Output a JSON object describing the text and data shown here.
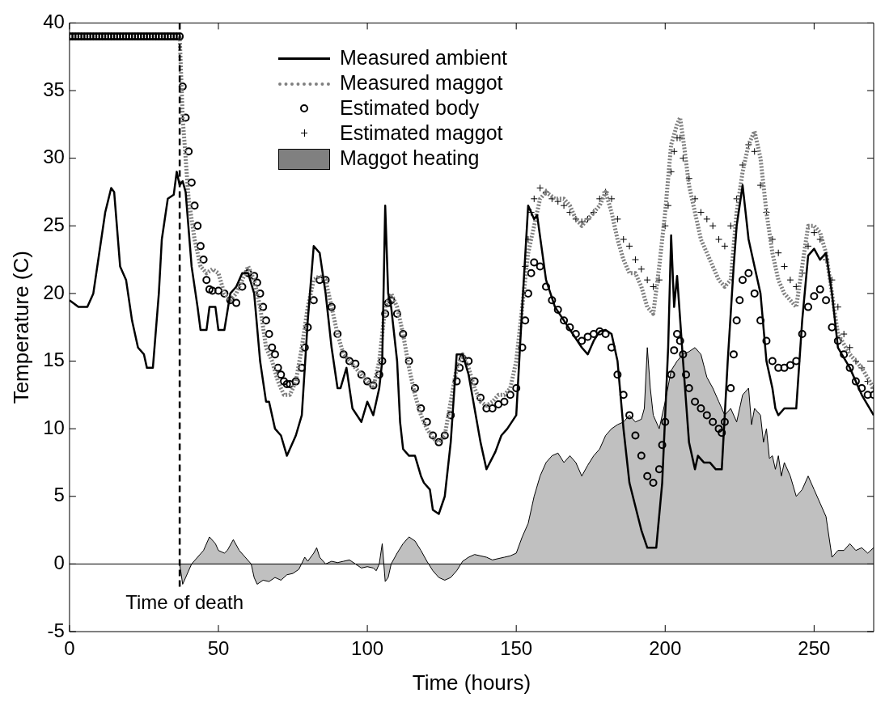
{
  "chart_data": {
    "type": "line",
    "xlabel": "Time (hours)",
    "ylabel": "Temperature (C)",
    "xlim": [
      0,
      270
    ],
    "ylim": [
      -5,
      40
    ],
    "xticks": [
      0,
      50,
      100,
      150,
      200,
      250
    ],
    "yticks": [
      -5,
      0,
      5,
      10,
      15,
      20,
      25,
      30,
      35,
      40
    ],
    "grid": false,
    "legend": "top",
    "ref_lines": [
      {
        "axis": "x",
        "value": 37,
        "label": "Time of death",
        "line_style": "dashed",
        "color": "#000000"
      },
      {
        "axis": "y",
        "value": 0,
        "label": null,
        "line_style": "solid",
        "color": "#000000"
      }
    ],
    "series": [
      {
        "name": "Measured ambient",
        "type": "line",
        "color": "#000000",
        "line_style": "solid",
        "marker": "none",
        "x": [
          0,
          3,
          6,
          8,
          10,
          12,
          14,
          15,
          17,
          19,
          21,
          23,
          25,
          26,
          28,
          30,
          31,
          33,
          35,
          36,
          37,
          38,
          39,
          41,
          43,
          44,
          46,
          47,
          49,
          50,
          52,
          54,
          56,
          58,
          60,
          62,
          64,
          66,
          67,
          69,
          71,
          73,
          76,
          78,
          80,
          82,
          84,
          86,
          88,
          90,
          91,
          93,
          95,
          98,
          100,
          102,
          104,
          105,
          106,
          107,
          108,
          110,
          111,
          112,
          114,
          116,
          118,
          119,
          121,
          122,
          124,
          126,
          128,
          130,
          132,
          134,
          136,
          138,
          140,
          143,
          145,
          147,
          150,
          152,
          154,
          156,
          157,
          160,
          163,
          166,
          169,
          172,
          174,
          176,
          178,
          180,
          182,
          184,
          186,
          188,
          192,
          194,
          197,
          199,
          201,
          202,
          203,
          204,
          206,
          208,
          210,
          211,
          213,
          215,
          217,
          219,
          221,
          223,
          224,
          226,
          228,
          230,
          232,
          234,
          236,
          237,
          238,
          240,
          242,
          244,
          246,
          248,
          250,
          252,
          254,
          256,
          258,
          262,
          266,
          270
        ],
        "values": [
          19.5,
          19,
          19,
          20,
          23,
          26,
          27.8,
          27.5,
          22,
          21,
          18,
          16,
          15.5,
          14.5,
          14.5,
          20,
          24,
          27,
          27.3,
          29,
          28,
          28.3,
          27.5,
          22,
          19,
          17.3,
          17.3,
          19,
          19,
          17.3,
          17.3,
          20,
          20.5,
          21.5,
          21.5,
          20,
          15,
          12,
          12,
          10,
          9.5,
          8,
          9.5,
          11,
          18,
          23.5,
          23,
          20,
          16,
          13,
          13,
          14.5,
          11.5,
          10.5,
          12,
          11,
          13,
          15,
          26.5,
          20,
          19,
          15,
          10.5,
          8.5,
          8,
          8,
          6.5,
          6,
          5.5,
          4,
          3.7,
          5,
          9,
          15.5,
          15.5,
          14,
          11.5,
          9,
          7,
          8.3,
          9.5,
          10,
          11,
          19,
          26.5,
          25.5,
          25.8,
          21,
          19,
          18,
          17,
          16,
          15.5,
          16.5,
          17.2,
          17.3,
          17,
          15,
          10,
          6,
          2.5,
          1.2,
          1.2,
          6,
          16,
          24.3,
          19,
          21.3,
          15,
          9,
          7,
          8,
          7.5,
          7.5,
          7,
          7,
          15,
          22,
          25,
          28,
          24,
          22,
          20,
          15,
          13,
          11.5,
          11,
          11.5,
          11.5,
          11.5,
          18,
          22.8,
          23.3,
          22.5,
          23,
          20,
          16,
          14.5,
          12.5,
          11
        ]
      },
      {
        "name": "Measured maggot",
        "type": "line",
        "color": "#808080",
        "line_style": "dotted",
        "marker": "none",
        "x": [
          37,
          38,
          39,
          40,
          42,
          44,
          46,
          48,
          50,
          52,
          54,
          56,
          58,
          60,
          62,
          64,
          66,
          68,
          70,
          72,
          74,
          76,
          78,
          80,
          82,
          84,
          86,
          88,
          90,
          92,
          94,
          96,
          98,
          100,
          102,
          104,
          106,
          108,
          110,
          112,
          114,
          116,
          118,
          120,
          122,
          124,
          126,
          128,
          130,
          132,
          134,
          136,
          138,
          140,
          142,
          144,
          146,
          148,
          150,
          152,
          154,
          156,
          158,
          160,
          163,
          166,
          168,
          170,
          172,
          174,
          178,
          180,
          182,
          184,
          186,
          188,
          190,
          192,
          194,
          196,
          198,
          200,
          202,
          204,
          205,
          206,
          208,
          210,
          212,
          214,
          216,
          218,
          220,
          222,
          224,
          226,
          228,
          230,
          232,
          234,
          236,
          238,
          240,
          242,
          244,
          246,
          248,
          250,
          252,
          254,
          256,
          258,
          262,
          266,
          270
        ],
        "values": [
          39,
          33,
          30,
          27,
          24,
          22,
          21.5,
          21.8,
          21.5,
          20,
          19.5,
          20,
          21,
          22,
          21,
          19,
          16,
          15,
          13.5,
          12.5,
          12.5,
          13.5,
          16,
          19,
          21,
          21.3,
          21,
          19,
          17,
          15.5,
          15,
          14.5,
          14,
          13.5,
          13,
          15,
          19,
          20,
          19,
          17,
          14.5,
          12.5,
          11,
          10,
          9.3,
          9,
          9.5,
          12,
          14.5,
          15.5,
          14.5,
          13,
          12,
          11.7,
          12,
          12.5,
          12.5,
          13,
          15,
          19,
          23,
          25,
          27,
          27.5,
          27,
          27,
          26.5,
          25.5,
          25,
          25.5,
          26.5,
          27.5,
          26,
          24,
          22.5,
          21.5,
          21.5,
          20.5,
          19,
          18.5,
          22,
          26,
          31,
          32.5,
          33,
          31.5,
          28,
          26,
          24,
          23,
          22,
          21,
          20.5,
          21,
          26,
          29,
          31,
          32,
          30,
          26,
          23,
          21,
          20,
          19.5,
          19,
          22,
          25,
          25,
          24.5,
          23,
          20,
          17,
          15.5,
          14.5,
          13
        ]
      },
      {
        "name": "Estimated body",
        "type": "scatter",
        "color": "#000000",
        "marker": "circle",
        "x": [
          0,
          1,
          2,
          3,
          4,
          5,
          6,
          7,
          8,
          9,
          10,
          11,
          12,
          13,
          14,
          15,
          16,
          17,
          18,
          19,
          20,
          21,
          22,
          23,
          24,
          25,
          26,
          27,
          28,
          29,
          30,
          31,
          32,
          33,
          34,
          35,
          36,
          37,
          38,
          39,
          40,
          41,
          42,
          43,
          44,
          45,
          46,
          47,
          48,
          50,
          52,
          54,
          56,
          58,
          60,
          62,
          63,
          64,
          65,
          66,
          67,
          68,
          69,
          70,
          71,
          72,
          73,
          74,
          76,
          78,
          79,
          80,
          82,
          84,
          86,
          88,
          90,
          92,
          94,
          96,
          98,
          100,
          102,
          104,
          105,
          106,
          107,
          108,
          110,
          112,
          114,
          116,
          118,
          120,
          122,
          124,
          126,
          128,
          130,
          131,
          132,
          134,
          136,
          138,
          140,
          142,
          144,
          146,
          148,
          150,
          152,
          153,
          154,
          155,
          156,
          158,
          160,
          162,
          164,
          166,
          168,
          170,
          172,
          174,
          176,
          178,
          180,
          182,
          184,
          186,
          188,
          190,
          192,
          194,
          196,
          198,
          199,
          200,
          202,
          203,
          204,
          205,
          206,
          207,
          208,
          210,
          212,
          214,
          216,
          218,
          219,
          220,
          222,
          223,
          224,
          225,
          226,
          228,
          230,
          232,
          234,
          236,
          238,
          240,
          242,
          244,
          246,
          248,
          250,
          252,
          254,
          256,
          258,
          260,
          262,
          264,
          266,
          268,
          270
        ],
        "values": [
          39,
          39,
          39,
          39,
          39,
          39,
          39,
          39,
          39,
          39,
          39,
          39,
          39,
          39,
          39,
          39,
          39,
          39,
          39,
          39,
          39,
          39,
          39,
          39,
          39,
          39,
          39,
          39,
          39,
          39,
          39,
          39,
          39,
          39,
          39,
          39,
          39,
          39,
          35.3,
          33,
          30.5,
          28.2,
          26.5,
          25,
          23.5,
          22.5,
          21,
          20.3,
          20.2,
          20.2,
          20,
          19.5,
          19.3,
          20.5,
          21.5,
          21.3,
          20.8,
          20,
          19,
          18,
          17,
          16,
          15.5,
          14.5,
          14,
          13.5,
          13.3,
          13.3,
          13.5,
          14.5,
          16,
          17.5,
          19.5,
          21,
          21,
          19,
          17,
          15.5,
          15,
          14.8,
          14,
          13.5,
          13.2,
          14,
          15,
          18.5,
          19.3,
          19.5,
          18.5,
          17,
          15,
          13,
          11.5,
          10.5,
          9.5,
          9,
          9.5,
          11,
          13.5,
          14.5,
          15.2,
          15,
          13.5,
          12.3,
          11.5,
          11.5,
          11.8,
          12,
          12.5,
          13,
          16,
          18,
          20,
          21.5,
          22.3,
          22,
          20.5,
          19.5,
          18.8,
          18,
          17.5,
          17,
          16.5,
          16.8,
          17,
          17.2,
          17,
          16,
          14,
          12.5,
          11,
          9.5,
          8,
          6.5,
          6,
          7,
          8.8,
          10.5,
          14,
          15.8,
          17,
          16.5,
          15.5,
          14,
          13,
          12,
          11.5,
          11,
          10.5,
          10,
          9.7,
          10.5,
          13,
          15.5,
          18,
          19.5,
          21,
          21.5,
          20,
          18,
          16.5,
          15,
          14.5,
          14.5,
          14.7,
          15,
          17,
          19,
          19.8,
          20.3,
          19.5,
          17.5,
          16.5,
          15.5,
          14.5,
          13.5,
          13,
          12.5,
          12.5
        ]
      },
      {
        "name": "Estimated maggot",
        "type": "scatter",
        "color": "#000000",
        "marker": "cross",
        "x": [
          153,
          154,
          155,
          156,
          158,
          160,
          162,
          164,
          166,
          168,
          170,
          172,
          174,
          176,
          178,
          180,
          182,
          184,
          186,
          188,
          190,
          192,
          194,
          196,
          198,
          200,
          201,
          202,
          203,
          204,
          205,
          206,
          208,
          210,
          212,
          214,
          216,
          218,
          220,
          222,
          224,
          226,
          228,
          230,
          232,
          234,
          236,
          238,
          240,
          242,
          244,
          246,
          248,
          250,
          252,
          254,
          256,
          258,
          260,
          262,
          264,
          266,
          268,
          270
        ],
        "values": [
          22,
          24,
          26,
          27,
          27.8,
          27.5,
          27,
          26.8,
          26.5,
          26,
          25.5,
          25.3,
          25.5,
          26,
          27,
          27.5,
          27,
          25.5,
          24,
          23.5,
          22.5,
          21.8,
          21,
          20.5,
          21,
          25,
          26.5,
          29,
          30.5,
          31.5,
          31.5,
          30,
          28.5,
          27,
          26,
          25.5,
          25,
          24,
          23.5,
          25,
          27,
          29.5,
          31,
          30.5,
          28,
          26,
          24,
          23,
          22,
          21,
          20.5,
          21.5,
          23.5,
          24.5,
          24,
          22.5,
          21,
          19,
          17,
          16,
          15,
          14.5,
          13.5,
          13
        ]
      },
      {
        "name": "Maggot heating",
        "type": "area",
        "color": "#c0c0c0",
        "x": [
          37,
          38,
          39,
          41,
          43,
          45,
          47,
          49,
          50,
          52,
          53,
          55,
          57,
          59,
          61,
          62,
          63,
          65,
          67,
          69,
          71,
          73,
          75,
          77,
          79,
          80,
          82,
          83,
          84,
          86,
          88,
          90,
          92,
          94,
          96,
          98,
          100,
          102,
          103,
          104,
          105,
          106,
          107,
          108,
          110,
          112,
          114,
          116,
          118,
          120,
          122,
          124,
          126,
          128,
          130,
          132,
          134,
          136,
          138,
          140,
          142,
          144,
          146,
          148,
          150,
          152,
          154,
          156,
          158,
          160,
          162,
          164,
          166,
          168,
          170,
          172,
          174,
          176,
          178,
          180,
          182,
          184,
          186,
          188,
          190,
          192,
          193,
          194,
          195,
          196,
          198,
          200,
          202,
          204,
          206,
          208,
          210,
          212,
          214,
          216,
          218,
          220,
          222,
          224,
          226,
          228,
          229,
          230,
          232,
          233,
          234,
          235,
          236,
          237,
          238,
          239,
          240,
          242,
          244,
          246,
          248,
          250,
          252,
          254,
          256,
          258,
          260,
          262,
          264,
          266,
          268,
          270
        ],
        "values": [
          0,
          -1.5,
          -1,
          0,
          0.5,
          1,
          2,
          1.5,
          1,
          0.8,
          1,
          1.8,
          1,
          0.5,
          0,
          -1,
          -1.5,
          -1.2,
          -1.3,
          -1,
          -1.2,
          -0.8,
          -0.7,
          -0.4,
          0.5,
          0.2,
          0.8,
          1.2,
          0.5,
          0,
          0.2,
          0.1,
          0.2,
          0.3,
          0,
          -0.3,
          -0.2,
          -0.3,
          -0.5,
          0,
          1.5,
          -1.3,
          -1,
          0,
          0.8,
          1.5,
          2,
          1.7,
          1,
          0.2,
          -0.5,
          -1,
          -1.2,
          -1,
          -0.5,
          0.2,
          0.5,
          0.7,
          0.6,
          0.5,
          0.3,
          0.4,
          0.5,
          0.6,
          0.8,
          2,
          3,
          5,
          6.5,
          7.5,
          8,
          8.2,
          7.5,
          8,
          7.5,
          6.5,
          7.3,
          8,
          8.5,
          9.5,
          10,
          10.3,
          10.5,
          11,
          10.5,
          10.7,
          11.5,
          16,
          13,
          11,
          10,
          12,
          14.3,
          15,
          15.5,
          15.7,
          16,
          15.5,
          13.8,
          13,
          12,
          11,
          11.5,
          10.5,
          12.5,
          13,
          10.3,
          11.5,
          11,
          9,
          10,
          7.8,
          8,
          7,
          8,
          6.5,
          7.5,
          6.5,
          5,
          5.5,
          6.5,
          5.5,
          4.5,
          3.5,
          0.5,
          1,
          1,
          1.5,
          1,
          1.2,
          0.8,
          1.2
        ]
      }
    ]
  }
}
